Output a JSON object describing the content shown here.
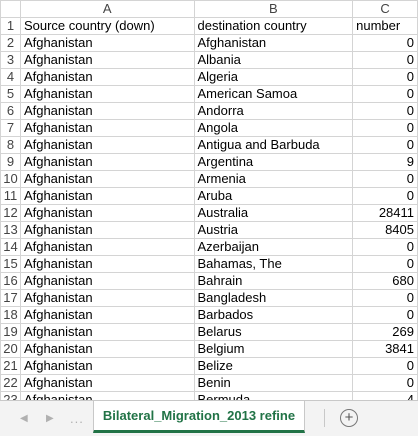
{
  "columns": [
    {
      "letter": "A"
    },
    {
      "letter": "B"
    },
    {
      "letter": "C"
    }
  ],
  "rows": [
    {
      "n": "1",
      "cells": [
        "Source country (down)",
        "destination country",
        "number"
      ]
    },
    {
      "n": "2",
      "cells": [
        "Afghanistan",
        "Afghanistan",
        "0"
      ]
    },
    {
      "n": "3",
      "cells": [
        "Afghanistan",
        "Albania",
        "0"
      ]
    },
    {
      "n": "4",
      "cells": [
        "Afghanistan",
        "Algeria",
        "0"
      ]
    },
    {
      "n": "5",
      "cells": [
        "Afghanistan",
        "American Samoa",
        "0"
      ]
    },
    {
      "n": "6",
      "cells": [
        "Afghanistan",
        "Andorra",
        "0"
      ]
    },
    {
      "n": "7",
      "cells": [
        "Afghanistan",
        "Angola",
        "0"
      ]
    },
    {
      "n": "8",
      "cells": [
        "Afghanistan",
        "Antigua and Barbuda",
        "0"
      ]
    },
    {
      "n": "9",
      "cells": [
        "Afghanistan",
        "Argentina",
        "9"
      ]
    },
    {
      "n": "10",
      "cells": [
        "Afghanistan",
        "Armenia",
        "0"
      ]
    },
    {
      "n": "11",
      "cells": [
        "Afghanistan",
        "Aruba",
        "0"
      ]
    },
    {
      "n": "12",
      "cells": [
        "Afghanistan",
        "Australia",
        "28411"
      ]
    },
    {
      "n": "13",
      "cells": [
        "Afghanistan",
        "Austria",
        "8405"
      ]
    },
    {
      "n": "14",
      "cells": [
        "Afghanistan",
        "Azerbaijan",
        "0"
      ]
    },
    {
      "n": "15",
      "cells": [
        "Afghanistan",
        "Bahamas, The",
        "0"
      ]
    },
    {
      "n": "16",
      "cells": [
        "Afghanistan",
        "Bahrain",
        "680"
      ]
    },
    {
      "n": "17",
      "cells": [
        "Afghanistan",
        "Bangladesh",
        "0"
      ]
    },
    {
      "n": "18",
      "cells": [
        "Afghanistan",
        "Barbados",
        "0"
      ]
    },
    {
      "n": "19",
      "cells": [
        "Afghanistan",
        "Belarus",
        "269"
      ]
    },
    {
      "n": "20",
      "cells": [
        "Afghanistan",
        "Belgium",
        "3841"
      ]
    },
    {
      "n": "21",
      "cells": [
        "Afghanistan",
        "Belize",
        "0"
      ]
    },
    {
      "n": "22",
      "cells": [
        "Afghanistan",
        "Benin",
        "0"
      ]
    },
    {
      "n": "23",
      "cells": [
        "Afghanistan",
        "Bermuda",
        "4"
      ]
    }
  ],
  "tabbar": {
    "prev_icon": "triangle-left-icon",
    "next_icon": "triangle-right-icon",
    "more_icon": "ellipsis-icon",
    "active_sheet": "Bilateral_Migration_2013 refine",
    "add_icon": "plus-circle-icon",
    "add_glyph": "+",
    "dots_glyph": "...",
    "prev_glyph": "◀",
    "next_glyph": "▶"
  },
  "colors": {
    "accent": "#217346",
    "gridline": "#d4d4d4"
  }
}
